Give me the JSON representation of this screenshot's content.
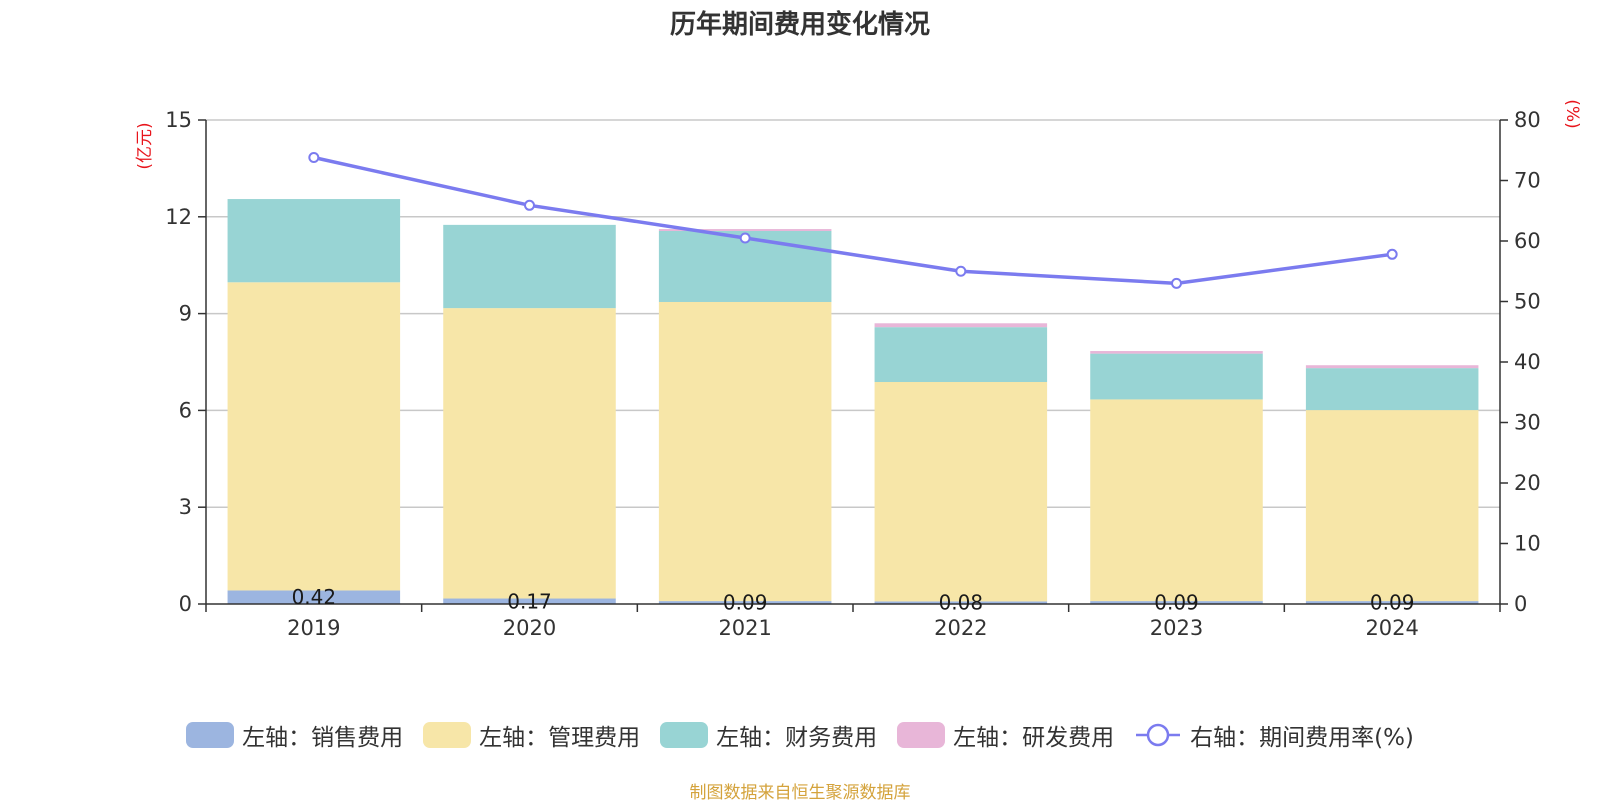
{
  "title": "历年期间费用变化情况",
  "source": "制图数据来自恒生聚源数据库",
  "chart_data": {
    "type": "bar",
    "stacked": true,
    "categories": [
      "2019",
      "2020",
      "2021",
      "2022",
      "2023",
      "2024"
    ],
    "left_axis": {
      "unit": "(亿元)",
      "ticks": [
        "0",
        "3",
        "6",
        "9",
        "12",
        "15"
      ],
      "range": [
        0,
        15
      ]
    },
    "right_axis": {
      "unit": "(%)",
      "ticks": [
        "0",
        "10",
        "20",
        "30",
        "40",
        "50",
        "60",
        "70",
        "80"
      ],
      "range": [
        0,
        80
      ]
    },
    "grid": true,
    "legend_position": "bottom",
    "series": [
      {
        "name": "左轴：销售费用",
        "axis": "left",
        "type": "bar",
        "color": "#9cb5e0",
        "values": [
          0.42,
          0.17,
          0.09,
          0.08,
          0.09,
          0.09
        ],
        "labels": [
          "0.42",
          "0.17",
          "0.09",
          "0.08",
          "0.09",
          "0.09"
        ]
      },
      {
        "name": "左轴：管理费用",
        "axis": "left",
        "type": "bar",
        "color": "#f7e6a8",
        "values": [
          9.55,
          9.0,
          9.27,
          6.8,
          6.25,
          5.92
        ]
      },
      {
        "name": "左轴：财务费用",
        "axis": "left",
        "type": "bar",
        "color": "#98d4d4",
        "values": [
          2.58,
          2.58,
          2.2,
          1.7,
          1.42,
          1.3
        ]
      },
      {
        "name": "左轴：研发费用",
        "axis": "left",
        "type": "bar",
        "color": "#e8b6d8",
        "values": [
          0.0,
          0.0,
          0.06,
          0.12,
          0.08,
          0.09
        ]
      },
      {
        "name": "右轴：期间费用率(%)",
        "axis": "right",
        "type": "line",
        "color": "#7b7bef",
        "values": [
          73.8,
          65.9,
          60.5,
          55.0,
          53.0,
          57.8
        ]
      }
    ]
  }
}
